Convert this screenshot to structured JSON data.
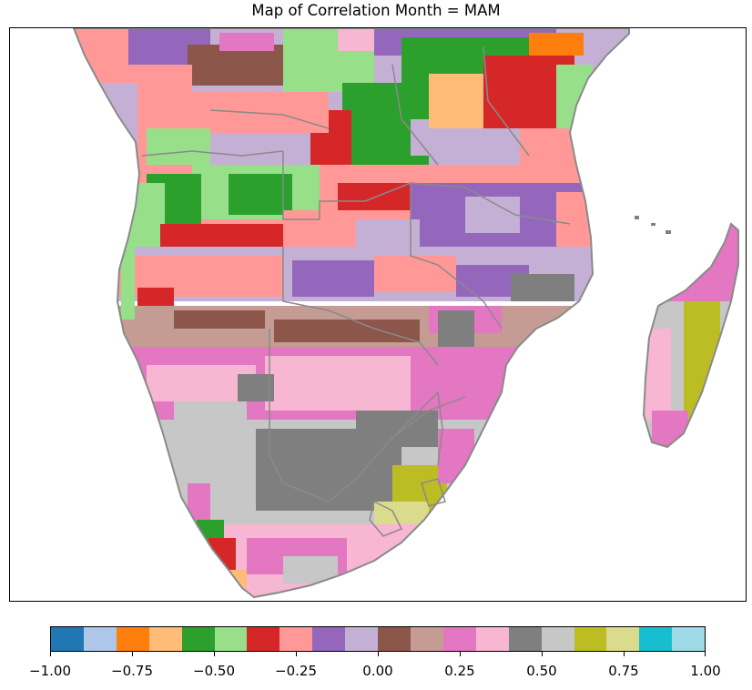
{
  "title": "Map of Correlation Month = MAM",
  "map": {
    "region": "Southern Africa and Madagascar",
    "land_fill_texture": "pixelated categorical correlation classes",
    "border_color": "#8a8a8a",
    "coast_color": "#8a8a8a"
  },
  "colorbar": {
    "colors": [
      "#1f77b4",
      "#aec7e8",
      "#ff7f0e",
      "#ffbb78",
      "#2ca02c",
      "#98df8a",
      "#d62728",
      "#ff9896",
      "#9467bd",
      "#c5b0d5",
      "#8c564b",
      "#c49c94",
      "#e377c2",
      "#f7b6d2",
      "#7f7f7f",
      "#c7c7c7",
      "#bcbd22",
      "#dbdb8d",
      "#17becf",
      "#9edae5"
    ],
    "tick_labels": [
      "−1.00",
      "−0.75",
      "−0.50",
      "−0.25",
      "0.00",
      "0.25",
      "0.50",
      "0.75",
      "1.00"
    ],
    "tick_values": [
      -1.0,
      -0.75,
      -0.5,
      -0.25,
      0.0,
      0.25,
      0.5,
      0.75,
      1.0
    ],
    "range": [
      -1.0,
      1.0
    ]
  }
}
